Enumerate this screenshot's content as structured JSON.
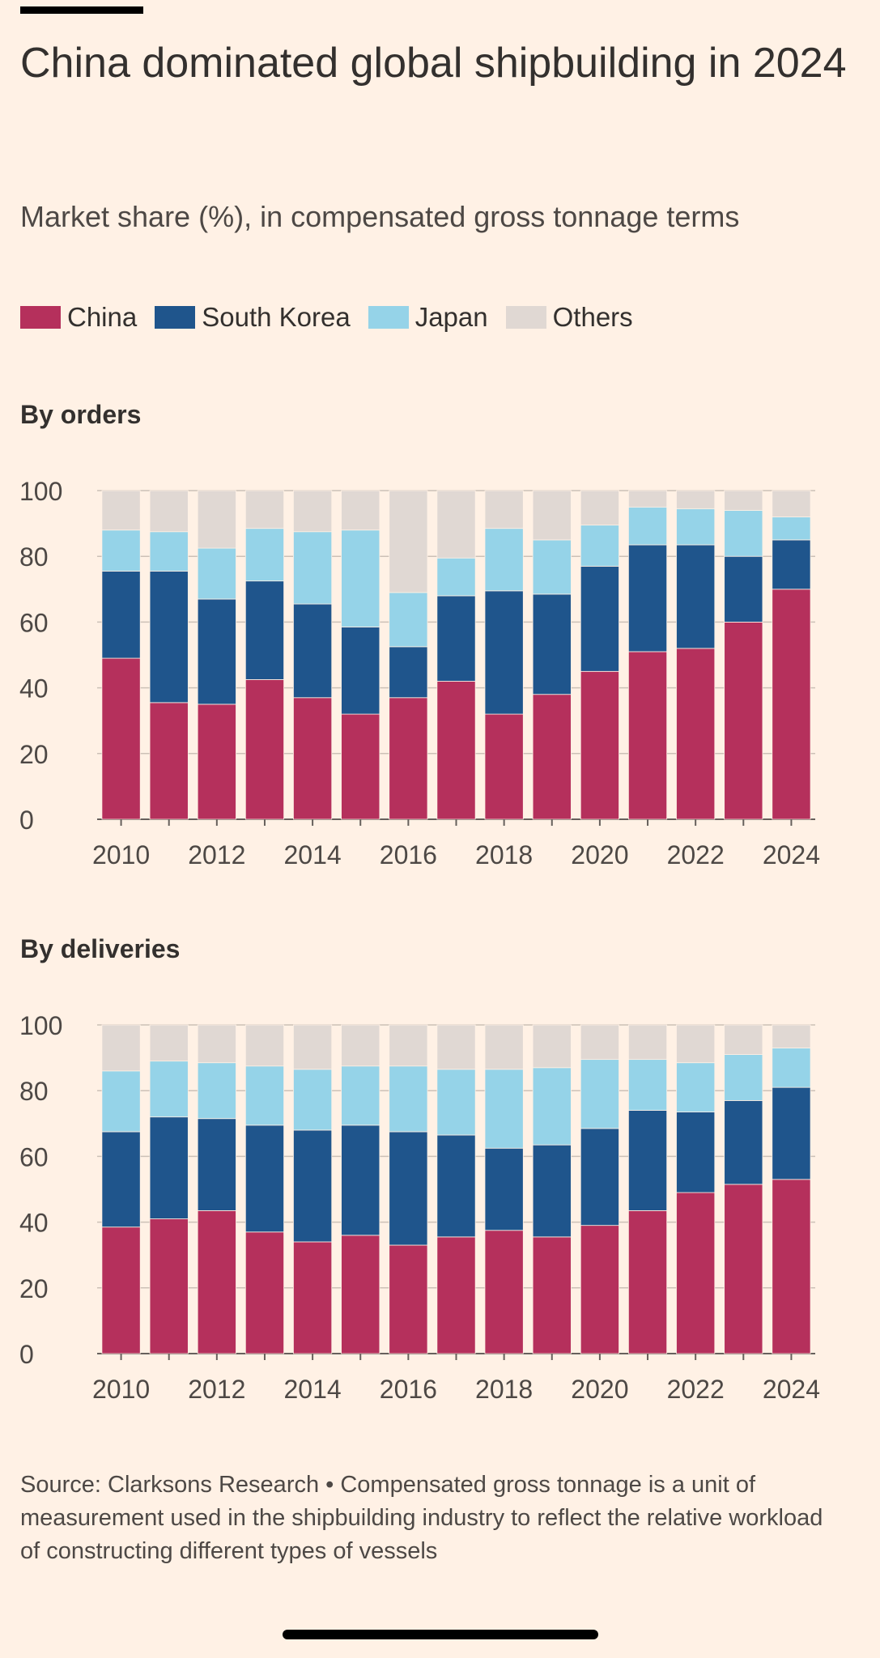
{
  "header": {
    "title": "China dominated global shipbuilding in 2024",
    "subtitle": "Market share (%), in compensated gross tonnage terms"
  },
  "legend": [
    {
      "label": "China",
      "color": "#b5305c"
    },
    {
      "label": "South Korea",
      "color": "#1f558c"
    },
    {
      "label": "Japan",
      "color": "#95d3e8"
    },
    {
      "label": "Others",
      "color": "#e0d8d3"
    }
  ],
  "footer": {
    "source": "Source: Clarksons Research • Compensated gross tonnage is a unit of measurement used in the shipbuilding industry to reflect the relative workload of constructing different types of vessels"
  },
  "chart_data": [
    {
      "type": "bar",
      "stacked": true,
      "title": "By orders",
      "categories": [
        "2010",
        "2011",
        "2012",
        "2013",
        "2014",
        "2015",
        "2016",
        "2017",
        "2018",
        "2019",
        "2020",
        "2021",
        "2022",
        "2023",
        "2024"
      ],
      "tick_labels": [
        "2010",
        "2012",
        "2014",
        "2016",
        "2018",
        "2020",
        "2022",
        "2024"
      ],
      "yticks": [
        "0",
        "20",
        "40",
        "60",
        "80",
        "100"
      ],
      "ylim": [
        0,
        100
      ],
      "grid": true,
      "series": [
        {
          "name": "China",
          "color": "#b5305c",
          "values": [
            49,
            35.5,
            35,
            42.5,
            37,
            32,
            37,
            42,
            32,
            38,
            45,
            51,
            52,
            60,
            70
          ]
        },
        {
          "name": "South Korea",
          "color": "#1f558c",
          "values": [
            26.5,
            40,
            32,
            30,
            28.5,
            26.5,
            15.5,
            26,
            37.5,
            30.5,
            32,
            32.5,
            31.5,
            20,
            15
          ]
        },
        {
          "name": "Japan",
          "color": "#95d3e8",
          "values": [
            12.5,
            12,
            15.5,
            16,
            22,
            29.5,
            16.5,
            11.5,
            19,
            16.5,
            12.5,
            11.5,
            11,
            14,
            7
          ]
        },
        {
          "name": "Others",
          "color": "#e0d8d3",
          "values": [
            12,
            12.5,
            17.5,
            11.5,
            12.5,
            12,
            31,
            20.5,
            11.5,
            15,
            10.5,
            5,
            5.5,
            6,
            8
          ]
        }
      ]
    },
    {
      "type": "bar",
      "stacked": true,
      "title": "By deliveries",
      "categories": [
        "2010",
        "2011",
        "2012",
        "2013",
        "2014",
        "2015",
        "2016",
        "2017",
        "2018",
        "2019",
        "2020",
        "2021",
        "2022",
        "2023",
        "2024"
      ],
      "tick_labels": [
        "2010",
        "2012",
        "2014",
        "2016",
        "2018",
        "2020",
        "2022",
        "2024"
      ],
      "yticks": [
        "0",
        "20",
        "40",
        "60",
        "80",
        "100"
      ],
      "ylim": [
        0,
        100
      ],
      "grid": true,
      "series": [
        {
          "name": "China",
          "color": "#b5305c",
          "values": [
            38.5,
            41,
            43.5,
            37,
            34,
            36,
            33,
            35.5,
            37.5,
            35.5,
            39,
            43.5,
            49,
            51.5,
            53
          ]
        },
        {
          "name": "South Korea",
          "color": "#1f558c",
          "values": [
            29,
            31,
            28,
            32.5,
            34,
            33.5,
            34.5,
            31,
            25,
            28,
            29.5,
            30.5,
            24.5,
            25.5,
            28
          ]
        },
        {
          "name": "Japan",
          "color": "#95d3e8",
          "values": [
            18.5,
            17,
            17,
            18,
            18.5,
            18,
            20,
            20,
            24,
            23.5,
            21,
            15.5,
            15,
            14,
            12
          ]
        },
        {
          "name": "Others",
          "color": "#e0d8d3",
          "values": [
            14,
            11,
            11.5,
            12.5,
            13.5,
            12.5,
            12.5,
            13.5,
            13.5,
            13,
            10.5,
            10.5,
            11.5,
            9,
            7
          ]
        }
      ]
    }
  ]
}
